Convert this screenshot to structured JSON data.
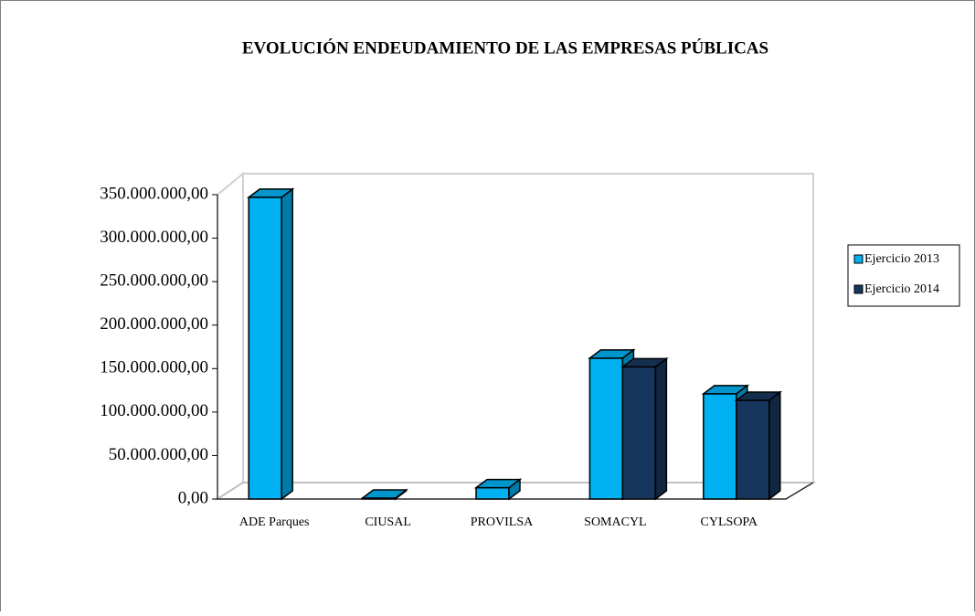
{
  "chart_data": {
    "type": "bar3d",
    "title": "EVOLUCIÓN ENDEUDAMIENTO DE LAS EMPRESAS PÚBLICAS",
    "categories": [
      "ADE Parques",
      "CIUSAL",
      "PROVILSA",
      "SOMACYL",
      "CYLSOPA"
    ],
    "series": [
      {
        "name": "Ejercicio 2013",
        "color": "#00b0f0",
        "values": [
          347000000,
          1000000,
          13000000,
          162000000,
          121000000
        ]
      },
      {
        "name": "Ejercicio 2014",
        "color": "#17365d",
        "values": [
          null,
          null,
          null,
          152000000,
          113500000
        ]
      }
    ],
    "ylim": [
      0,
      350000000
    ],
    "yticks": [
      {
        "value": 0,
        "label": "0,00"
      },
      {
        "value": 50000000,
        "label": "50.000.000,00"
      },
      {
        "value": 100000000,
        "label": "100.000.000,00"
      },
      {
        "value": 150000000,
        "label": "150.000.000,00"
      },
      {
        "value": 200000000,
        "label": "200.000.000,00"
      },
      {
        "value": 250000000,
        "label": "250.000.000,00"
      },
      {
        "value": 300000000,
        "label": "300.000.000,00"
      },
      {
        "value": 350000000,
        "label": "350.000.000,00"
      }
    ],
    "legend": "right",
    "grid": false
  }
}
